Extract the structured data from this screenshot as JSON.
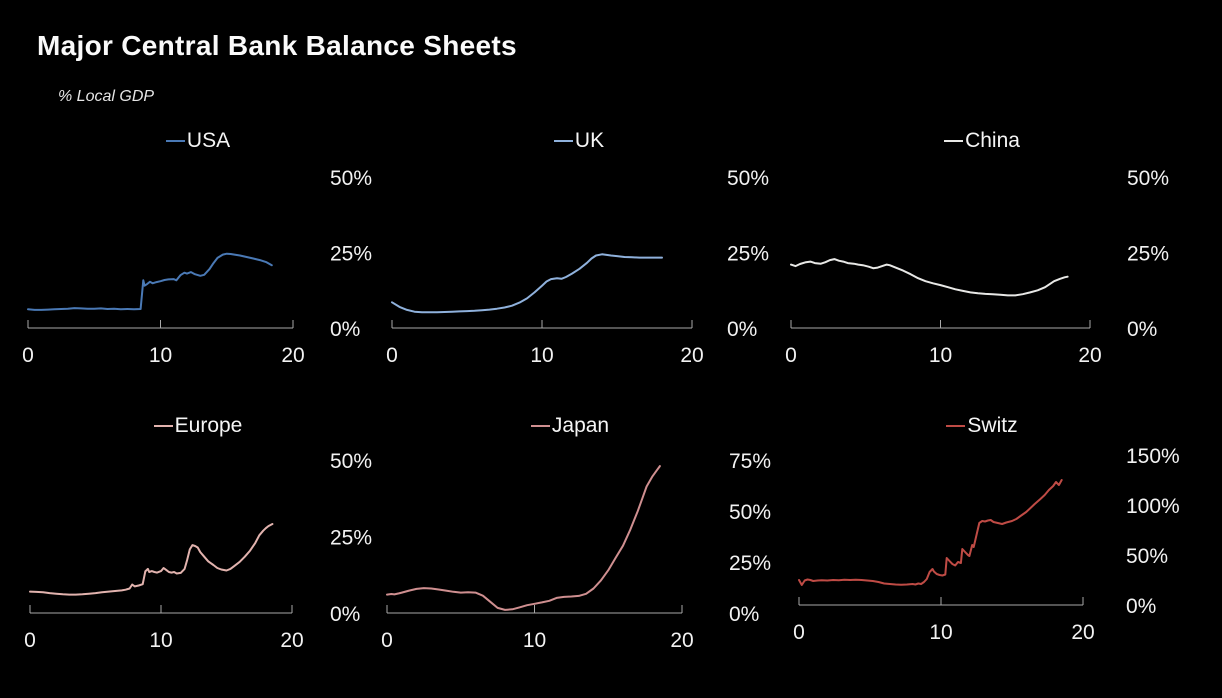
{
  "title": "Major Central Bank Balance Sheets",
  "subtitle": "% Local GDP",
  "colors": {
    "background": "#000000",
    "text": "#f2f2f2",
    "axis": "#a9a9a9"
  },
  "chart_data": [
    {
      "id": "usa",
      "type": "line",
      "legend": "USA",
      "color": "#4a79b5",
      "xlim": [
        0,
        20
      ],
      "ylim": [
        0,
        55
      ],
      "xticks": [
        0,
        10,
        20
      ],
      "xtick_labels": [
        "0",
        "10",
        "20"
      ],
      "yticks": [
        0,
        25,
        50
      ],
      "ytick_labels": [
        "0%",
        "25%",
        "50%"
      ],
      "x": [
        0,
        0.5,
        1,
        1.5,
        2,
        2.5,
        3,
        3.5,
        4,
        4.5,
        5,
        5.5,
        6,
        6.5,
        7,
        7.5,
        8,
        8.5,
        8.7,
        8.8,
        9,
        9.2,
        9.4,
        9.7,
        10,
        10.3,
        10.6,
        11,
        11.2,
        11.5,
        11.8,
        12,
        12.3,
        12.6,
        13,
        13.3,
        13.7,
        14,
        14.3,
        14.7,
        15,
        15.3,
        15.7,
        16,
        16.5,
        17,
        17.5,
        18,
        18.4
      ],
      "y": [
        6.2,
        6.0,
        6.0,
        6.1,
        6.2,
        6.3,
        6.4,
        6.6,
        6.5,
        6.4,
        6.4,
        6.5,
        6.3,
        6.4,
        6.2,
        6.3,
        6.2,
        6.3,
        15.8,
        14.0,
        14.6,
        15.3,
        14.8,
        15.2,
        15.5,
        15.9,
        16.1,
        16.2,
        15.8,
        17.5,
        18.3,
        18.0,
        18.5,
        17.8,
        17.3,
        17.6,
        19.5,
        21.5,
        23.2,
        24.3,
        24.6,
        24.5,
        24.2,
        24.0,
        23.5,
        23.0,
        22.5,
        21.8,
        20.8
      ]
    },
    {
      "id": "uk",
      "type": "line",
      "legend": "UK",
      "color": "#8fb1dc",
      "xlim": [
        0,
        20
      ],
      "ylim": [
        0,
        55
      ],
      "xticks": [
        0,
        10,
        20
      ],
      "xtick_labels": [
        "0",
        "10",
        "20"
      ],
      "yticks": [
        0,
        25,
        50
      ],
      "ytick_labels": [
        "0%",
        "25%",
        "50%"
      ],
      "x": [
        0,
        0.5,
        1,
        1.5,
        2,
        2.5,
        3,
        3.5,
        4,
        4.5,
        5,
        5.5,
        6,
        6.5,
        7,
        7.5,
        8,
        8.5,
        9,
        9.5,
        10,
        10.3,
        10.6,
        11,
        11.3,
        11.6,
        12,
        12.5,
        13,
        13.3,
        13.6,
        14,
        14.3,
        14.6,
        15,
        15.5,
        16,
        16.5,
        17,
        17.5,
        18
      ],
      "y": [
        8.5,
        7.0,
        6.0,
        5.4,
        5.2,
        5.2,
        5.2,
        5.3,
        5.4,
        5.5,
        5.6,
        5.7,
        5.9,
        6.1,
        6.4,
        6.8,
        7.4,
        8.4,
        9.8,
        11.8,
        14.0,
        15.4,
        16.2,
        16.5,
        16.3,
        16.9,
        18.0,
        19.6,
        21.6,
        23.0,
        24.0,
        24.4,
        24.2,
        24.0,
        23.8,
        23.5,
        23.4,
        23.3,
        23.3,
        23.3,
        23.3
      ]
    },
    {
      "id": "china",
      "type": "line",
      "legend": "China",
      "color": "#e8e8e6",
      "xlim": [
        0,
        20
      ],
      "ylim": [
        0,
        55
      ],
      "xticks": [
        0,
        10,
        20
      ],
      "xtick_labels": [
        "0",
        "10",
        "20"
      ],
      "yticks": [
        0,
        25,
        50
      ],
      "ytick_labels": [
        "0%",
        "25%",
        "50%"
      ],
      "x": [
        0,
        0.3,
        0.6,
        1,
        1.3,
        1.6,
        2,
        2.3,
        2.6,
        2.9,
        3.2,
        3.5,
        3.8,
        4.2,
        4.5,
        4.8,
        5.2,
        5.5,
        5.8,
        6.1,
        6.4,
        6.6,
        7,
        7.5,
        8,
        8.5,
        9,
        9.5,
        10,
        10.5,
        11,
        11.5,
        12,
        12.5,
        13,
        13.5,
        14,
        14.5,
        15,
        15.5,
        16,
        16.5,
        17,
        17.3,
        17.6,
        18,
        18.3,
        18.5
      ],
      "y": [
        21.0,
        20.5,
        21.2,
        21.8,
        22.0,
        21.5,
        21.3,
        21.8,
        22.5,
        22.8,
        22.3,
        22.0,
        21.5,
        21.3,
        21.0,
        20.8,
        20.3,
        19.8,
        20.0,
        20.5,
        21.0,
        20.8,
        20.0,
        19.0,
        17.8,
        16.5,
        15.5,
        14.8,
        14.2,
        13.5,
        12.8,
        12.3,
        11.8,
        11.5,
        11.3,
        11.2,
        11.0,
        10.8,
        10.8,
        11.2,
        11.8,
        12.5,
        13.5,
        14.5,
        15.5,
        16.3,
        16.8,
        17.0
      ]
    },
    {
      "id": "europe",
      "type": "line",
      "legend": "Europe",
      "color": "#e2b3ae",
      "xlim": [
        0,
        20
      ],
      "ylim": [
        0,
        55
      ],
      "xticks": [
        0,
        10,
        20
      ],
      "xtick_labels": [
        "0",
        "10",
        "20"
      ],
      "yticks": [
        0,
        25,
        50
      ],
      "ytick_labels": [
        "0%",
        "25%",
        "50%"
      ],
      "x": [
        0,
        0.5,
        1,
        1.5,
        2,
        2.5,
        3,
        3.5,
        4,
        4.5,
        5,
        5.5,
        6,
        6.5,
        7,
        7.3,
        7.6,
        7.8,
        8,
        8.3,
        8.6,
        8.8,
        9,
        9.1,
        9.3,
        9.5,
        9.7,
        10,
        10.2,
        10.4,
        10.6,
        10.8,
        11,
        11.2,
        11.5,
        11.8,
        12,
        12.2,
        12.4,
        12.6,
        12.8,
        13,
        13.3,
        13.6,
        14,
        14.3,
        14.6,
        15,
        15.3,
        15.6,
        16,
        16.4,
        16.8,
        17.2,
        17.5,
        17.8,
        18,
        18.2,
        18.5
      ],
      "y": [
        7.0,
        6.9,
        6.8,
        6.5,
        6.3,
        6.1,
        6.0,
        6.0,
        6.1,
        6.3,
        6.5,
        6.8,
        7.0,
        7.2,
        7.4,
        7.6,
        8.0,
        9.3,
        8.7,
        9.0,
        9.4,
        13.6,
        14.4,
        13.4,
        13.7,
        13.4,
        13.2,
        13.7,
        14.7,
        14.1,
        13.4,
        13.2,
        13.4,
        12.9,
        13.1,
        14.4,
        17.4,
        20.8,
        22.2,
        21.9,
        21.4,
        19.9,
        18.4,
        16.9,
        15.7,
        14.7,
        14.2,
        13.9,
        14.4,
        15.4,
        16.7,
        18.4,
        20.4,
        22.9,
        25.4,
        26.9,
        27.7,
        28.4,
        29.1
      ]
    },
    {
      "id": "japan",
      "type": "line",
      "legend": "Japan",
      "color": "#cf8f90",
      "xlim": [
        0,
        20
      ],
      "ylim": [
        0,
        80
      ],
      "xticks": [
        0,
        10,
        20
      ],
      "xtick_labels": [
        "0",
        "10",
        "20"
      ],
      "yticks": [
        0,
        25,
        50,
        75
      ],
      "ytick_labels": [
        "0%",
        "25%",
        "50%",
        "75%"
      ],
      "x": [
        0,
        0.3,
        0.5,
        0.8,
        1,
        1.5,
        2,
        2.5,
        3,
        3.5,
        4,
        4.5,
        5,
        5.5,
        6,
        6.5,
        7,
        7.5,
        8,
        8.5,
        9,
        9.5,
        10,
        10.5,
        11,
        11.5,
        12,
        12.5,
        13,
        13.5,
        14,
        14.5,
        15,
        15.5,
        16,
        16.5,
        17,
        17.3,
        17.6,
        18,
        18.3,
        18.5
      ],
      "y": [
        9.0,
        9.3,
        9.1,
        9.6,
        10.0,
        11.0,
        11.8,
        12.2,
        12.0,
        11.5,
        11.0,
        10.4,
        10.0,
        10.2,
        10.0,
        8.5,
        5.5,
        2.5,
        1.5,
        1.8,
        2.8,
        3.8,
        4.5,
        5.2,
        6.0,
        7.4,
        7.9,
        8.1,
        8.4,
        9.4,
        12.0,
        16.0,
        21.0,
        27.0,
        33.0,
        41.0,
        50.0,
        56.0,
        62.0,
        67.0,
        70.0,
        72.0
      ]
    },
    {
      "id": "switz",
      "type": "line",
      "legend": "Switz",
      "color": "#bf4b45",
      "xlim": [
        0,
        20
      ],
      "ylim": [
        0,
        160
      ],
      "xticks": [
        0,
        10,
        20
      ],
      "xtick_labels": [
        "0",
        "10",
        "20"
      ],
      "yticks": [
        0,
        50,
        100,
        150
      ],
      "ytick_labels": [
        "0%",
        "50%",
        "100%",
        "150%"
      ],
      "x": [
        0,
        0.2,
        0.4,
        0.6,
        0.8,
        1,
        1.3,
        1.6,
        2,
        2.4,
        2.8,
        3.2,
        3.6,
        4,
        4.4,
        4.8,
        5.2,
        5.6,
        6,
        6.4,
        6.8,
        7.2,
        7.6,
        8,
        8.2,
        8.4,
        8.6,
        8.8,
        9,
        9.2,
        9.4,
        9.5,
        9.7,
        9.9,
        10.1,
        10.3,
        10.4,
        10.6,
        10.8,
        11,
        11.2,
        11.4,
        11.5,
        11.7,
        11.9,
        12,
        12.2,
        12.3,
        12.5,
        12.7,
        12.9,
        13.1,
        13.3,
        13.5,
        13.7,
        14,
        14.3,
        14.6,
        15,
        15.3,
        15.6,
        16,
        16.3,
        16.6,
        17,
        17.3,
        17.6,
        17.9,
        18.1,
        18.3,
        18.5
      ],
      "y": [
        25.0,
        20.0,
        24.5,
        25.5,
        25.0,
        24.0,
        24.5,
        24.8,
        24.5,
        25.0,
        24.8,
        25.2,
        25.0,
        25.3,
        25.0,
        24.5,
        24.0,
        23.0,
        21.5,
        21.0,
        20.5,
        20.3,
        20.5,
        21.0,
        20.5,
        21.5,
        21.0,
        23.0,
        26.0,
        33.0,
        36.0,
        33.5,
        31.0,
        30.0,
        29.5,
        30.5,
        47.0,
        44.0,
        41.0,
        39.5,
        43.0,
        42.0,
        56.0,
        53.0,
        50.0,
        49.0,
        60.0,
        58.0,
        70.0,
        82.0,
        84.0,
        83.5,
        84.5,
        85.0,
        83.0,
        82.0,
        81.0,
        82.5,
        84.0,
        86.0,
        89.0,
        93.0,
        97.0,
        101.0,
        106.0,
        110.0,
        115.0,
        119.0,
        123.0,
        120.0,
        125.0
      ]
    }
  ]
}
